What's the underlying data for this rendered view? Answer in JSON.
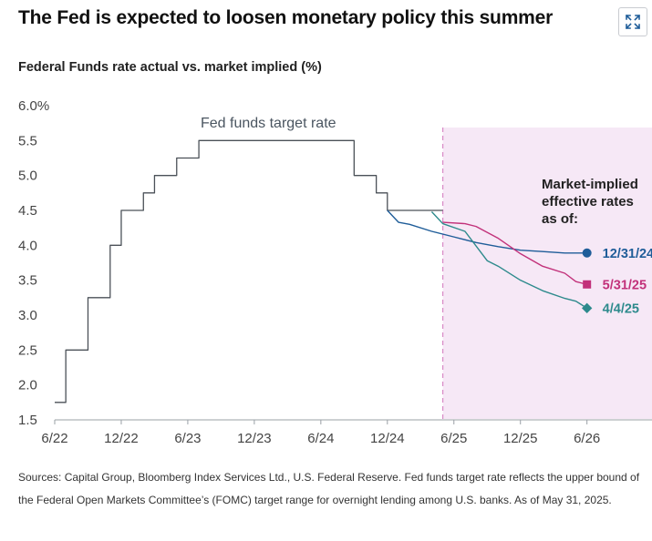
{
  "header": {
    "title": "The Fed is expected to loosen monetary policy this summer",
    "subtitle": "Federal Funds rate actual vs. market implied (%)",
    "expand_icon": "expand-icon"
  },
  "footer": {
    "source": "Sources: Capital Group, Bloomberg Index Services Ltd., U.S. Federal Reserve. Fed funds target rate reflects the upper bound of the Federal Open Markets Committee’s (FOMC) target range for overnight lending among U.S. banks. As of May 31, 2025."
  },
  "chart_data": {
    "type": "line",
    "title": "The Fed is expected to loosen monetary policy this summer",
    "subtitle": "Federal Funds rate actual vs. market implied (%)",
    "xlabel": "",
    "ylabel": "",
    "x_ticks": [
      "6/22",
      "12/22",
      "6/23",
      "12/23",
      "6/24",
      "12/24",
      "6/25",
      "12/25",
      "6/26"
    ],
    "y_ticks": [
      "6.0%",
      "5.5",
      "5.0",
      "4.5",
      "4.0",
      "3.5",
      "3.0",
      "2.5",
      "2.0",
      "1.5"
    ],
    "ylim": [
      1.5,
      6.0
    ],
    "xlim": [
      "2022-06",
      "2026-12"
    ],
    "grid": false,
    "annotation": "Fed funds target rate",
    "legend_title": "Market-implied effective rates as of:",
    "forecast_region_start": "2025-05",
    "colors": {
      "fed": "#4b5158",
      "s1231": "#1f5d99",
      "s0531": "#c2317a",
      "s0404": "#2d8a8c",
      "shade": "#f6e8f6",
      "shade_edge": "#d98ac7"
    },
    "series": [
      {
        "name": "Fed funds target rate",
        "step": true,
        "points": [
          [
            "2022-06-01",
            1.75
          ],
          [
            "2022-07-01",
            2.5
          ],
          [
            "2022-09-01",
            3.25
          ],
          [
            "2022-11-01",
            4.0
          ],
          [
            "2022-12-01",
            4.5
          ],
          [
            "2023-02-01",
            4.75
          ],
          [
            "2023-03-01",
            5.0
          ],
          [
            "2023-05-01",
            5.25
          ],
          [
            "2023-07-01",
            5.5
          ],
          [
            "2024-09-01",
            5.0
          ],
          [
            "2024-11-01",
            4.75
          ],
          [
            "2024-12-01",
            4.5
          ],
          [
            "2025-05-01",
            4.5
          ]
        ]
      },
      {
        "name": "12/31/24",
        "marker": "circle",
        "points": [
          [
            "2024-12-01",
            4.5
          ],
          [
            "2025-01-01",
            4.33
          ],
          [
            "2025-02-01",
            4.3
          ],
          [
            "2025-04-01",
            4.2
          ],
          [
            "2025-06-01",
            4.12
          ],
          [
            "2025-08-01",
            4.04
          ],
          [
            "2025-10-01",
            3.98
          ],
          [
            "2025-12-01",
            3.93
          ],
          [
            "2026-02-01",
            3.91
          ],
          [
            "2026-04-01",
            3.89
          ],
          [
            "2026-06-01",
            3.89
          ]
        ]
      },
      {
        "name": "5/31/25",
        "marker": "square",
        "points": [
          [
            "2025-05-01",
            4.33
          ],
          [
            "2025-07-01",
            4.31
          ],
          [
            "2025-08-01",
            4.27
          ],
          [
            "2025-10-01",
            4.1
          ],
          [
            "2025-12-01",
            3.88
          ],
          [
            "2026-02-01",
            3.7
          ],
          [
            "2026-04-01",
            3.6
          ],
          [
            "2026-05-01",
            3.48
          ],
          [
            "2026-06-01",
            3.44
          ]
        ]
      },
      {
        "name": "4/4/25",
        "marker": "diamond",
        "points": [
          [
            "2025-04-01",
            4.48
          ],
          [
            "2025-05-01",
            4.31
          ],
          [
            "2025-07-01",
            4.2
          ],
          [
            "2025-09-01",
            3.78
          ],
          [
            "2025-10-01",
            3.7
          ],
          [
            "2025-12-01",
            3.5
          ],
          [
            "2026-02-01",
            3.35
          ],
          [
            "2026-04-01",
            3.24
          ],
          [
            "2026-05-01",
            3.2
          ],
          [
            "2026-06-01",
            3.1
          ]
        ]
      }
    ]
  }
}
